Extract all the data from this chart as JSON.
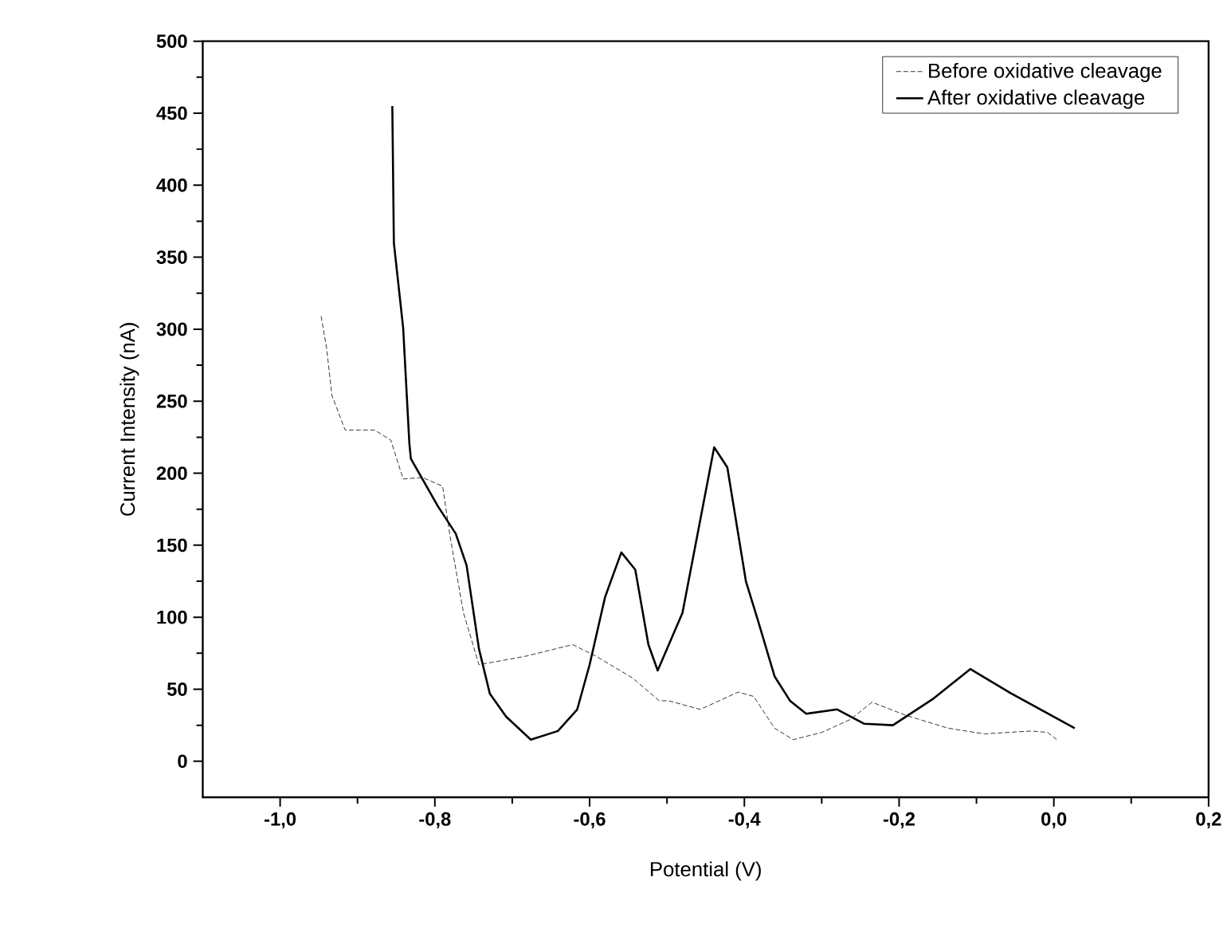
{
  "chart_data": {
    "type": "line",
    "xlabel": "Potential (V)",
    "ylabel": "Current Intensity (nA)",
    "xlim": [
      -1.1,
      0.2
    ],
    "ylim": [
      -25,
      500
    ],
    "xticks": [
      {
        "value": -1.0,
        "label": "-1,0"
      },
      {
        "value": -0.8,
        "label": "-0,8"
      },
      {
        "value": -0.6,
        "label": "-0,6"
      },
      {
        "value": -0.4,
        "label": "-0,4"
      },
      {
        "value": -0.2,
        "label": "-0,2"
      },
      {
        "value": 0.0,
        "label": "0,0"
      },
      {
        "value": 0.2,
        "label": "0,2"
      }
    ],
    "yticks": [
      0,
      50,
      100,
      150,
      200,
      250,
      300,
      350,
      400,
      450,
      500
    ],
    "legend": "top right",
    "grid": false,
    "marker": "none",
    "series": [
      {
        "name": "Before oxidative cleavage",
        "color": "#000000",
        "line_style": "dashed",
        "x": [
          -0.947,
          -0.94,
          -0.933,
          -0.916,
          -0.878,
          -0.857,
          -0.841,
          -0.816,
          -0.79,
          -0.78,
          -0.763,
          -0.743,
          -0.682,
          -0.622,
          -0.592,
          -0.545,
          -0.51,
          -0.498,
          -0.457,
          -0.408,
          -0.388,
          -0.361,
          -0.337,
          -0.3,
          -0.263,
          -0.235,
          -0.192,
          -0.137,
          -0.09,
          -0.029,
          -0.008,
          0.006
        ],
        "values": [
          309,
          287,
          254,
          230,
          230,
          223,
          196,
          197,
          191,
          155,
          103,
          67,
          73,
          81,
          73,
          58,
          42,
          42,
          36,
          48,
          45,
          23,
          15,
          20,
          29,
          41,
          32,
          23,
          19,
          21,
          20,
          14
        ]
      },
      {
        "name": "After oxidative cleavage",
        "color": "#000000",
        "line_style": "solid",
        "x": [
          -0.855,
          -0.853,
          -0.841,
          -0.833,
          -0.831,
          -0.796,
          -0.773,
          -0.759,
          -0.743,
          -0.729,
          -0.708,
          -0.676,
          -0.641,
          -0.616,
          -0.6,
          -0.58,
          -0.559,
          -0.541,
          -0.524,
          -0.512,
          -0.48,
          -0.439,
          -0.422,
          -0.398,
          -0.382,
          -0.361,
          -0.341,
          -0.32,
          -0.28,
          -0.245,
          -0.208,
          -0.157,
          -0.108,
          -0.055,
          0.027
        ],
        "values": [
          455,
          360,
          301,
          221,
          210,
          177,
          158,
          136,
          78,
          47,
          31,
          15,
          21,
          36,
          67,
          114,
          145,
          133,
          81,
          63,
          103,
          218,
          204,
          125,
          97,
          59,
          42,
          33,
          36,
          26,
          25,
          43,
          64,
          47,
          23
        ]
      }
    ]
  }
}
